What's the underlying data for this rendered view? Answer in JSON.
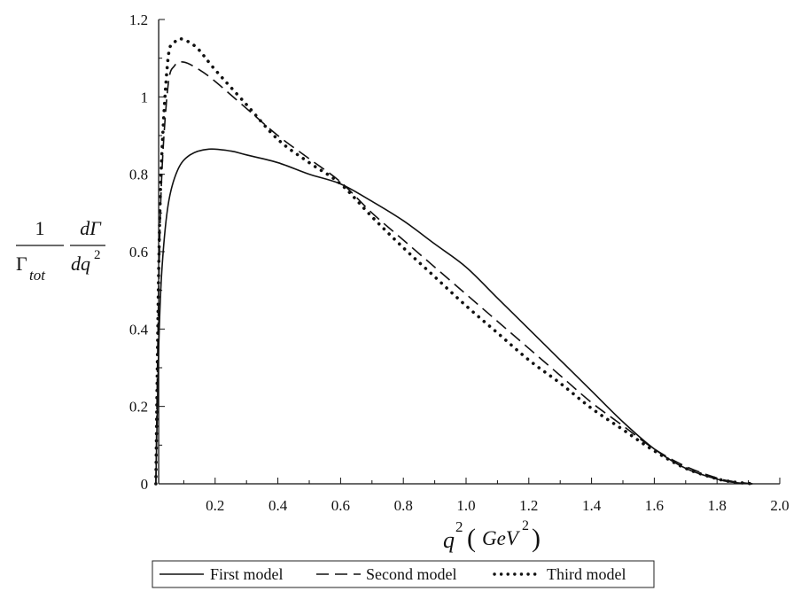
{
  "chart_data": {
    "type": "line",
    "title": "",
    "xlabel": {
      "base": "q",
      "sup": "2",
      "open": "(",
      "unit": "GeV",
      "unit_sup": "2",
      "close": ")"
    },
    "ylabel": {
      "num_left": "1",
      "den_left": "Γ",
      "den_left_sub": "tot",
      "num_right": "dΓ",
      "den_right": "dq",
      "den_right_sup": "2"
    },
    "xlim": [
      0,
      2.0
    ],
    "ylim": [
      0,
      1.2
    ],
    "x_ticks": [
      "0.2",
      "0.4",
      "0.6",
      "0.8",
      "1.0",
      "1.2",
      "1.4",
      "1.6",
      "1.8",
      "2.0"
    ],
    "y_ticks": [
      "0",
      "0.2",
      "0.4",
      "0.6",
      "0.8",
      "1",
      "1.2"
    ],
    "legend_position": "bottom",
    "series": [
      {
        "name": "First model",
        "style": "solid",
        "x": [
          0.011,
          0.02,
          0.03,
          0.05,
          0.08,
          0.12,
          0.18,
          0.25,
          0.3,
          0.4,
          0.5,
          0.6,
          0.7,
          0.8,
          0.9,
          1.0,
          1.1,
          1.2,
          1.3,
          1.4,
          1.5,
          1.6,
          1.7,
          1.8,
          1.85,
          1.9,
          1.913
        ],
        "y": [
          0,
          0.35,
          0.55,
          0.72,
          0.81,
          0.85,
          0.865,
          0.86,
          0.85,
          0.83,
          0.8,
          0.775,
          0.73,
          0.68,
          0.62,
          0.56,
          0.48,
          0.4,
          0.32,
          0.24,
          0.16,
          0.09,
          0.04,
          0.012,
          0.004,
          0.0005,
          0
        ]
      },
      {
        "name": "Second model",
        "style": "dashed",
        "x": [
          0.011,
          0.02,
          0.03,
          0.05,
          0.07,
          0.1,
          0.15,
          0.2,
          0.3,
          0.4,
          0.5,
          0.6,
          0.7,
          0.8,
          0.9,
          1.0,
          1.1,
          1.2,
          1.3,
          1.4,
          1.5,
          1.6,
          1.7,
          1.8,
          1.85,
          1.9,
          1.913
        ],
        "y": [
          0,
          0.5,
          0.8,
          1.03,
          1.08,
          1.09,
          1.07,
          1.04,
          0.97,
          0.9,
          0.84,
          0.78,
          0.7,
          0.63,
          0.56,
          0.49,
          0.42,
          0.35,
          0.28,
          0.21,
          0.15,
          0.09,
          0.045,
          0.015,
          0.006,
          0.001,
          0
        ]
      },
      {
        "name": "Third model",
        "style": "dotted",
        "x": [
          0.011,
          0.02,
          0.03,
          0.05,
          0.07,
          0.09,
          0.12,
          0.15,
          0.2,
          0.3,
          0.4,
          0.5,
          0.6,
          0.7,
          0.8,
          0.9,
          1.0,
          1.1,
          1.2,
          1.3,
          1.4,
          1.5,
          1.6,
          1.7,
          1.8,
          1.85,
          1.9,
          1.913
        ],
        "y": [
          0,
          0.55,
          0.85,
          1.1,
          1.14,
          1.15,
          1.14,
          1.12,
          1.07,
          0.98,
          0.89,
          0.83,
          0.775,
          0.69,
          0.61,
          0.535,
          0.46,
          0.39,
          0.32,
          0.26,
          0.195,
          0.14,
          0.085,
          0.04,
          0.013,
          0.005,
          0.001,
          0
        ]
      }
    ]
  }
}
